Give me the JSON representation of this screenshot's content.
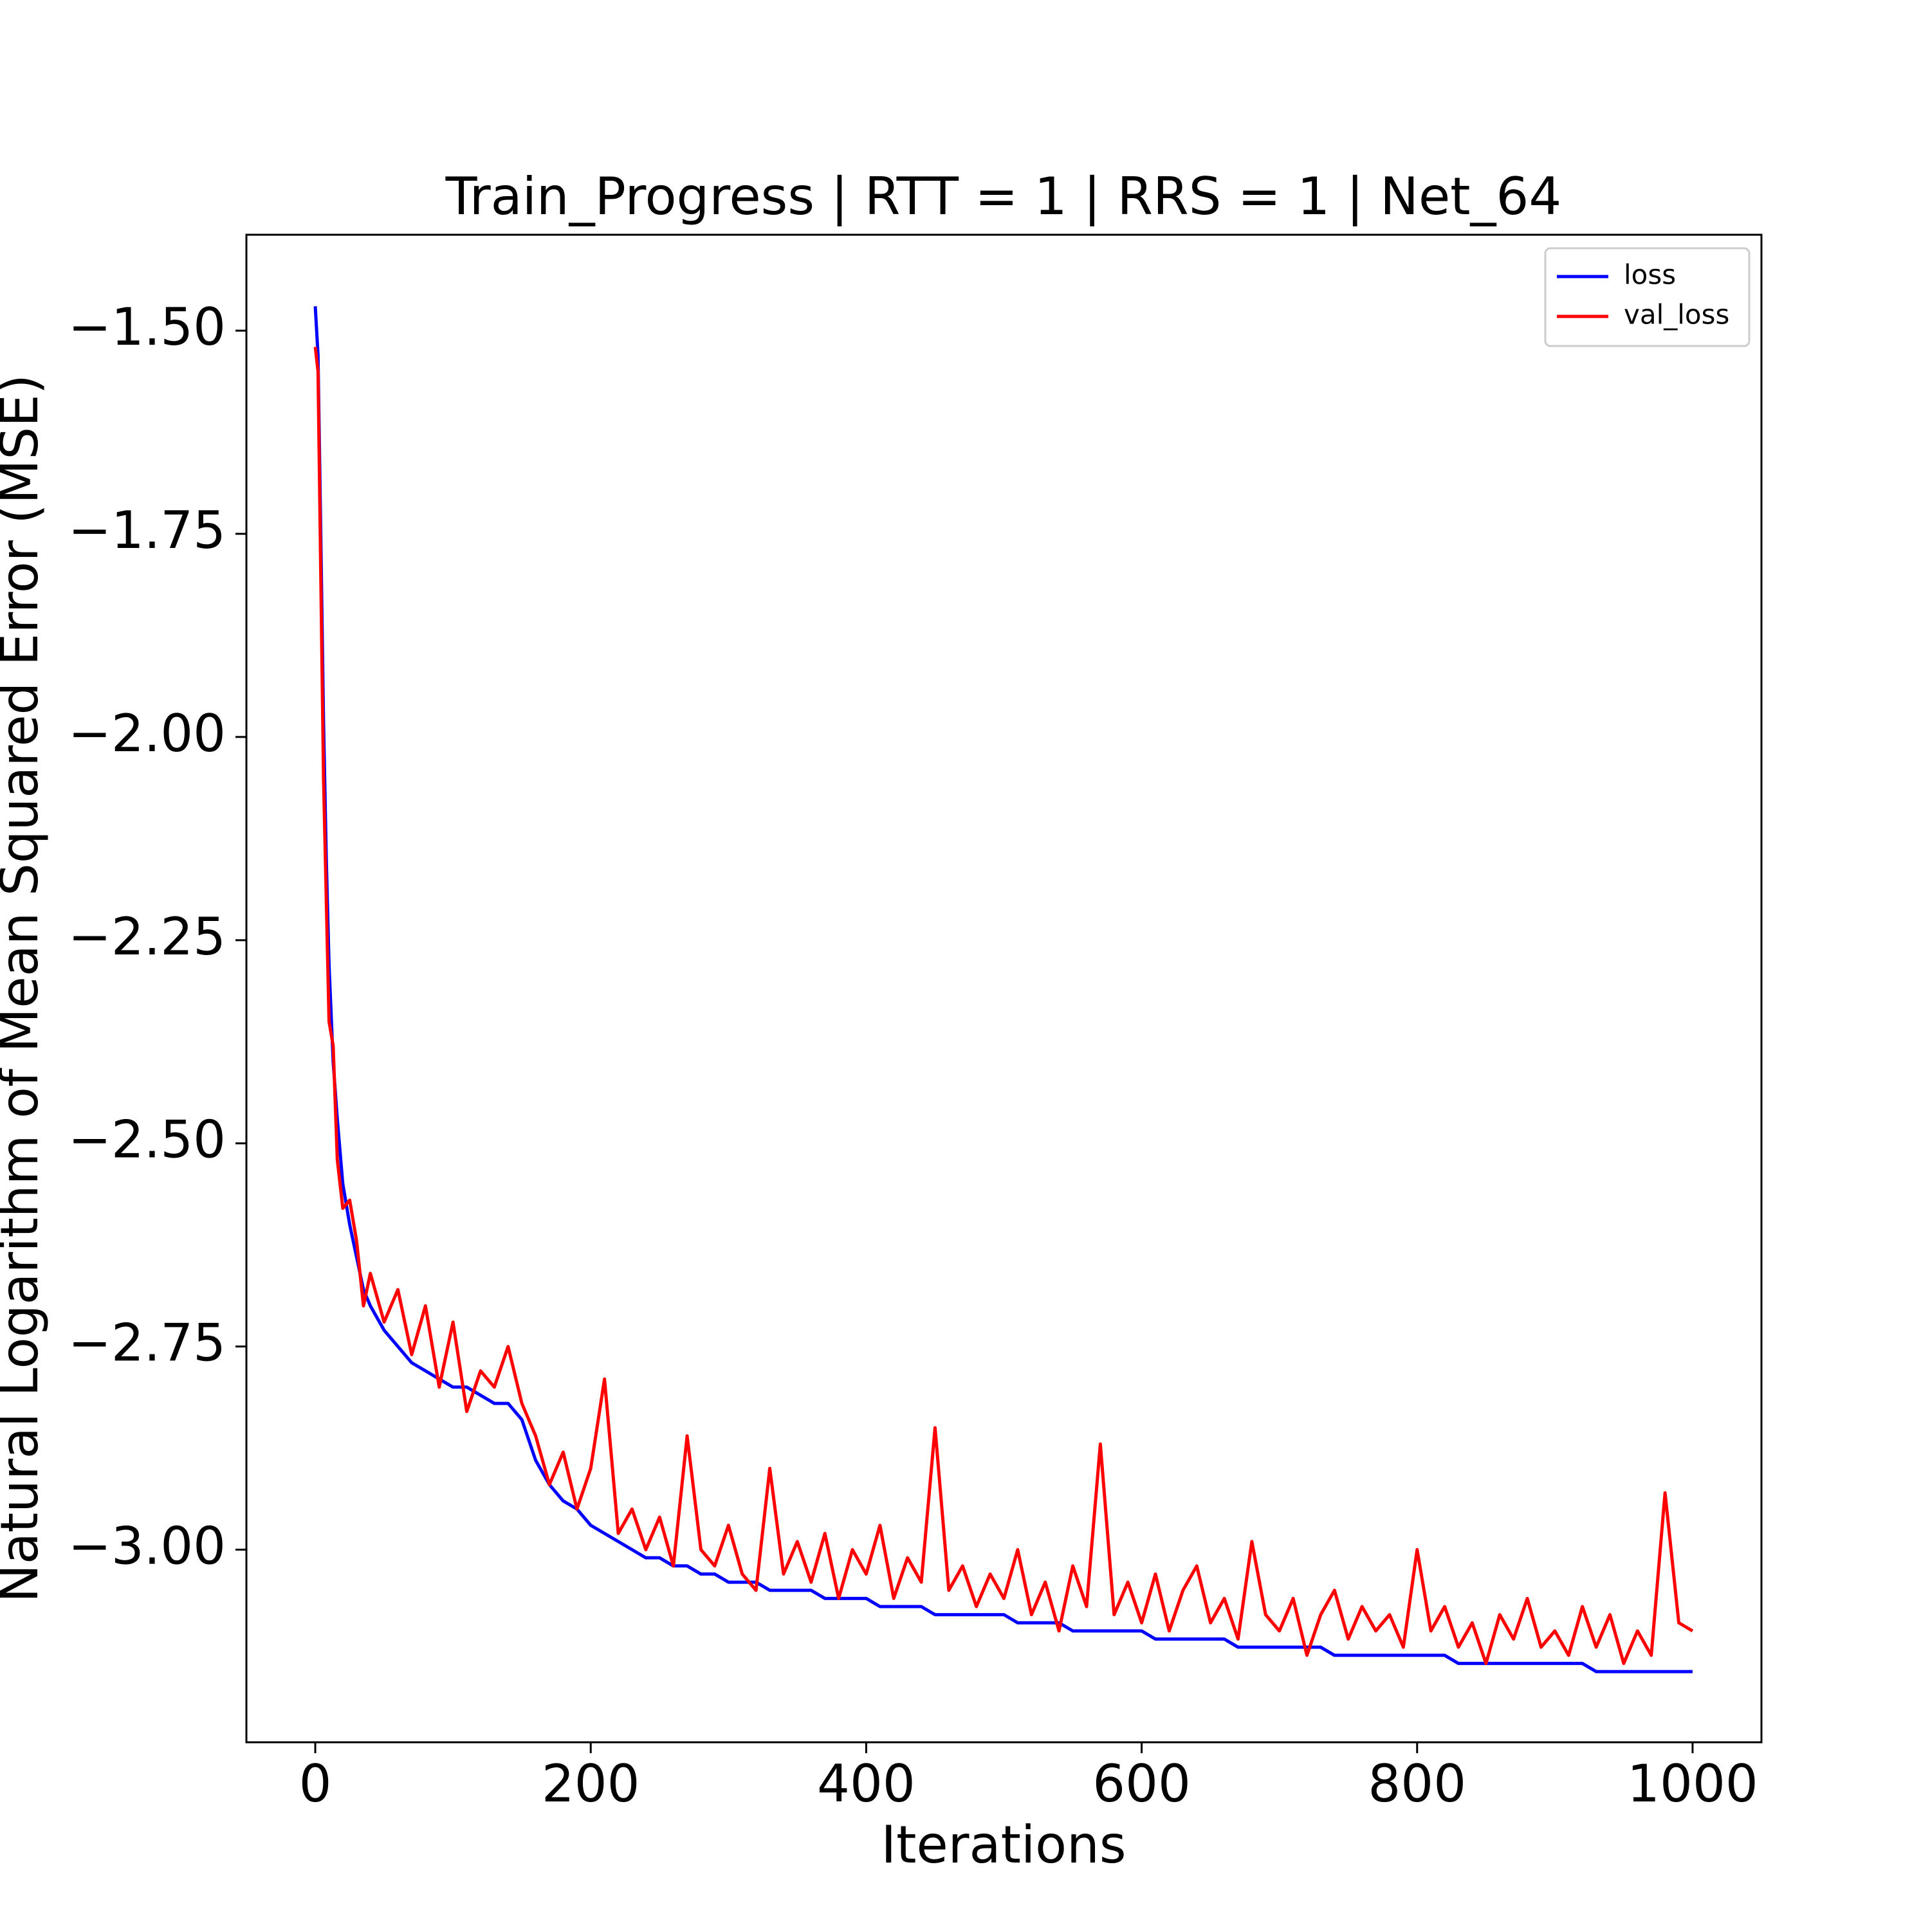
{
  "chart_data": {
    "type": "line",
    "title": "Train_Progress | RTT = 1 | RRS = 1 | Net_64",
    "x_label": "Iterations",
    "y_label": "Natural Logarithm of Mean Squared Error (MSE)",
    "x": [
      0,
      2,
      4,
      6,
      8,
      10,
      13,
      16,
      20,
      25,
      30,
      35,
      40,
      50,
      60,
      70,
      80,
      90,
      100,
      110,
      120,
      130,
      140,
      150,
      160,
      170,
      180,
      190,
      200,
      210,
      220,
      230,
      240,
      250,
      260,
      270,
      280,
      290,
      300,
      310,
      320,
      330,
      340,
      350,
      360,
      370,
      380,
      390,
      400,
      410,
      420,
      430,
      440,
      450,
      460,
      470,
      480,
      490,
      500,
      510,
      520,
      530,
      540,
      550,
      560,
      570,
      580,
      590,
      600,
      610,
      620,
      630,
      640,
      650,
      660,
      670,
      680,
      690,
      700,
      710,
      720,
      730,
      740,
      750,
      760,
      770,
      780,
      790,
      800,
      810,
      820,
      830,
      840,
      850,
      860,
      870,
      880,
      890,
      900,
      910,
      920,
      930,
      940,
      950,
      960,
      970,
      980,
      990,
      1000
    ],
    "series": [
      {
        "name": "loss",
        "color": "#0000ff",
        "values": [
          -1.47,
          -1.53,
          -1.75,
          -1.98,
          -2.15,
          -2.28,
          -2.4,
          -2.47,
          -2.55,
          -2.6,
          -2.64,
          -2.68,
          -2.7,
          -2.73,
          -2.75,
          -2.77,
          -2.78,
          -2.79,
          -2.8,
          -2.8,
          -2.81,
          -2.82,
          -2.82,
          -2.84,
          -2.89,
          -2.92,
          -2.94,
          -2.95,
          -2.97,
          -2.98,
          -2.99,
          -3.0,
          -3.01,
          -3.01,
          -3.02,
          -3.02,
          -3.03,
          -3.03,
          -3.04,
          -3.04,
          -3.04,
          -3.05,
          -3.05,
          -3.05,
          -3.05,
          -3.06,
          -3.06,
          -3.06,
          -3.06,
          -3.07,
          -3.07,
          -3.07,
          -3.07,
          -3.08,
          -3.08,
          -3.08,
          -3.08,
          -3.08,
          -3.08,
          -3.09,
          -3.09,
          -3.09,
          -3.09,
          -3.1,
          -3.1,
          -3.1,
          -3.1,
          -3.1,
          -3.1,
          -3.11,
          -3.11,
          -3.11,
          -3.11,
          -3.11,
          -3.11,
          -3.12,
          -3.12,
          -3.12,
          -3.12,
          -3.12,
          -3.12,
          -3.12,
          -3.13,
          -3.13,
          -3.13,
          -3.13,
          -3.13,
          -3.13,
          -3.13,
          -3.13,
          -3.13,
          -3.14,
          -3.14,
          -3.14,
          -3.14,
          -3.14,
          -3.14,
          -3.14,
          -3.14,
          -3.14,
          -3.14,
          -3.15,
          -3.15,
          -3.15,
          -3.15,
          -3.15,
          -3.15,
          -3.15,
          -3.15
        ]
      },
      {
        "name": "val_loss",
        "color": "#ff0000",
        "values": [
          -1.52,
          -1.55,
          -1.8,
          -2.05,
          -2.2,
          -2.35,
          -2.38,
          -2.52,
          -2.58,
          -2.57,
          -2.62,
          -2.7,
          -2.66,
          -2.72,
          -2.68,
          -2.76,
          -2.7,
          -2.8,
          -2.72,
          -2.83,
          -2.78,
          -2.8,
          -2.75,
          -2.82,
          -2.86,
          -2.92,
          -2.88,
          -2.95,
          -2.9,
          -2.79,
          -2.98,
          -2.95,
          -3.0,
          -2.96,
          -3.02,
          -2.86,
          -3.0,
          -3.02,
          -2.97,
          -3.03,
          -3.05,
          -2.9,
          -3.03,
          -2.99,
          -3.04,
          -2.98,
          -3.06,
          -3.0,
          -3.03,
          -2.97,
          -3.06,
          -3.01,
          -3.04,
          -2.85,
          -3.05,
          -3.02,
          -3.07,
          -3.03,
          -3.06,
          -3.0,
          -3.08,
          -3.04,
          -3.1,
          -3.02,
          -3.07,
          -2.87,
          -3.08,
          -3.04,
          -3.09,
          -3.03,
          -3.1,
          -3.05,
          -3.02,
          -3.09,
          -3.06,
          -3.11,
          -2.99,
          -3.08,
          -3.1,
          -3.06,
          -3.13,
          -3.08,
          -3.05,
          -3.11,
          -3.07,
          -3.1,
          -3.08,
          -3.12,
          -3.0,
          -3.1,
          -3.07,
          -3.12,
          -3.09,
          -3.14,
          -3.08,
          -3.11,
          -3.06,
          -3.12,
          -3.1,
          -3.13,
          -3.07,
          -3.12,
          -3.08,
          -3.14,
          -3.1,
          -3.13,
          -2.93,
          -3.09,
          -3.1
        ]
      }
    ],
    "xlim": [
      -50,
      1050
    ],
    "ylim": [
      -3.237,
      -1.382
    ],
    "xticks": [
      0,
      200,
      400,
      600,
      800,
      1000
    ],
    "yticks": [
      {
        "value": -1.5,
        "label": "−1.50"
      },
      {
        "value": -1.75,
        "label": "−1.75"
      },
      {
        "value": -2.0,
        "label": "−2.00"
      },
      {
        "value": -2.25,
        "label": "−2.25"
      },
      {
        "value": -2.5,
        "label": "−2.50"
      },
      {
        "value": -2.75,
        "label": "−2.75"
      },
      {
        "value": -3.0,
        "label": "−3.00"
      }
    ],
    "grid": false,
    "legend": "upper right"
  }
}
